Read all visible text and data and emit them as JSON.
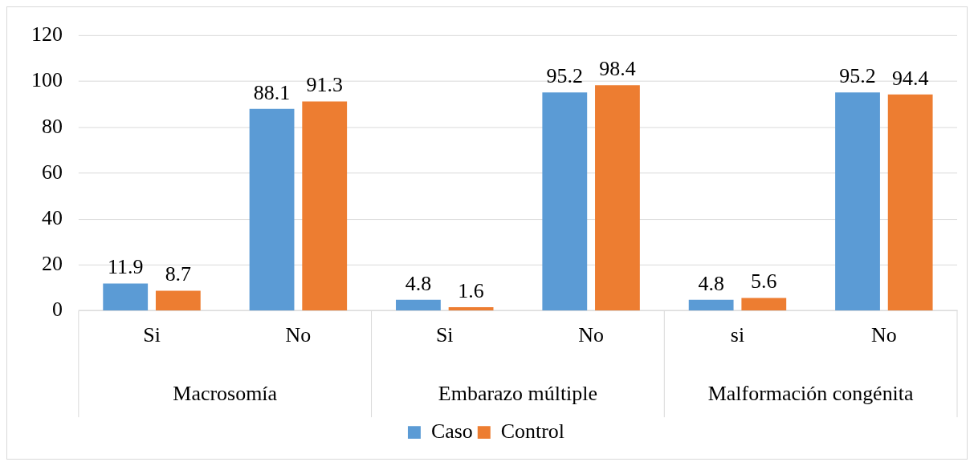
{
  "chart_data": {
    "type": "bar",
    "categories": [
      "Si",
      "No",
      "Si",
      "No",
      "si",
      "No"
    ],
    "series": [
      {
        "name": "Caso",
        "color": "#5b9bd5",
        "values": [
          11.9,
          88.1,
          4.8,
          95.2,
          4.8,
          95.2
        ]
      },
      {
        "name": "Control",
        "color": "#ed7d31",
        "values": [
          8.7,
          91.3,
          1.6,
          98.4,
          5.6,
          94.4
        ]
      }
    ],
    "annotations": [
      "Macrosomía",
      "Embarazo múltiple",
      "Malformación congénita"
    ],
    "ylim": [
      0,
      120
    ],
    "yticks": [
      0,
      20,
      40,
      60,
      80,
      100,
      120
    ],
    "grid": "y",
    "legend": "bottom",
    "data_labels": true
  }
}
